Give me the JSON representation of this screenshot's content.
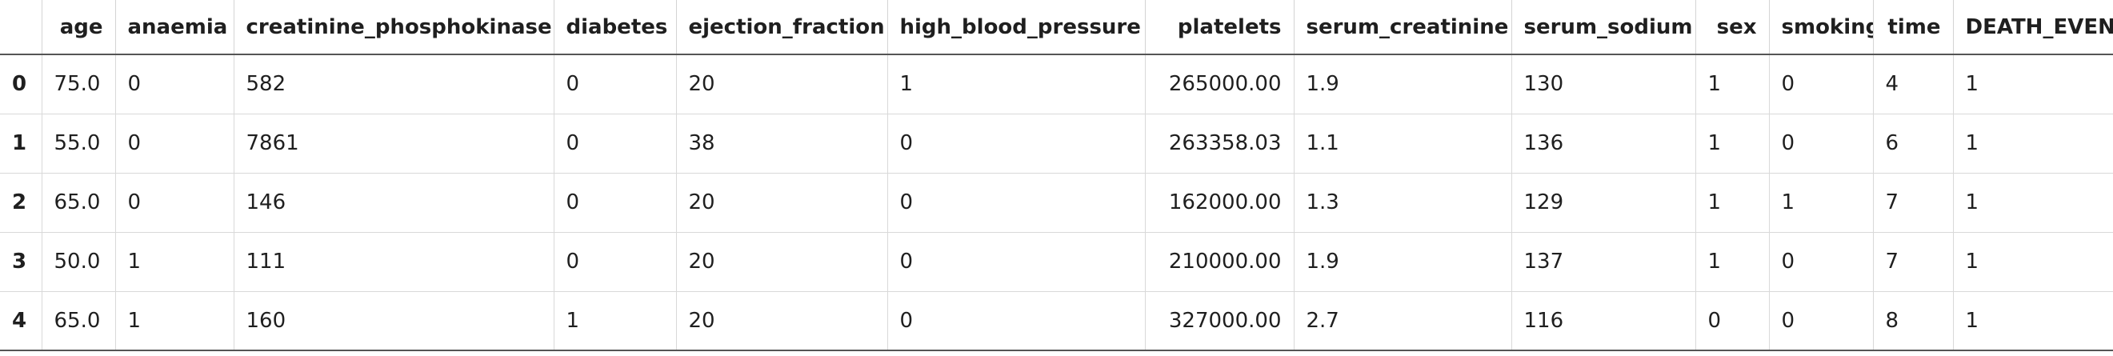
{
  "table": {
    "index_header": "",
    "columns": [
      "age",
      "anaemia",
      "creatinine_phosphokinase",
      "diabetes",
      "ejection_fraction",
      "high_blood_pressure",
      "platelets",
      "serum_creatinine",
      "serum_sodium",
      "sex",
      "smoking",
      "time",
      "DEATH_EVENT"
    ],
    "rows": [
      {
        "index": "0",
        "cells": [
          "75.0",
          "0",
          "582",
          "0",
          "20",
          "1",
          "265000.00",
          "1.9",
          "130",
          "1",
          "0",
          "4",
          "1"
        ]
      },
      {
        "index": "1",
        "cells": [
          "55.0",
          "0",
          "7861",
          "0",
          "38",
          "0",
          "263358.03",
          "1.1",
          "136",
          "1",
          "0",
          "6",
          "1"
        ]
      },
      {
        "index": "2",
        "cells": [
          "65.0",
          "0",
          "146",
          "0",
          "20",
          "0",
          "162000.00",
          "1.3",
          "129",
          "1",
          "1",
          "7",
          "1"
        ]
      },
      {
        "index": "3",
        "cells": [
          "50.0",
          "1",
          "111",
          "0",
          "20",
          "0",
          "210000.00",
          "1.9",
          "137",
          "1",
          "0",
          "7",
          "1"
        ]
      },
      {
        "index": "4",
        "cells": [
          "65.0",
          "1",
          "160",
          "1",
          "20",
          "0",
          "327000.00",
          "2.7",
          "116",
          "0",
          "0",
          "8",
          "1"
        ]
      }
    ]
  }
}
